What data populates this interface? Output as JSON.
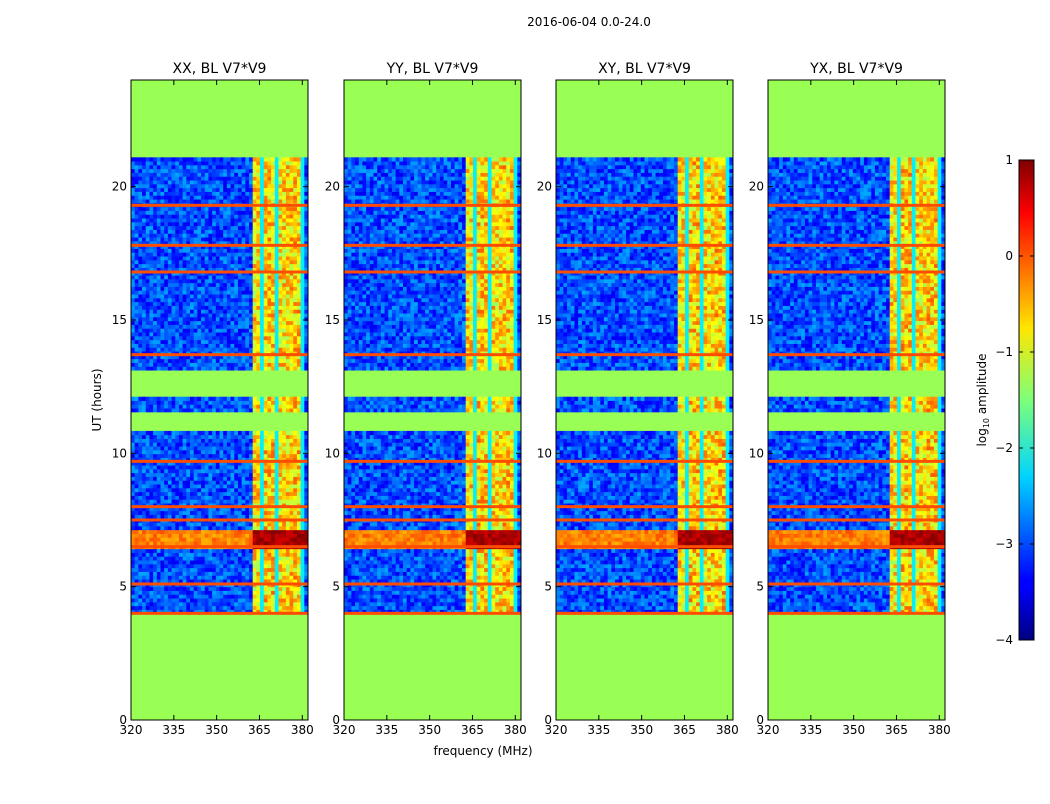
{
  "chart_data": {
    "type": "heatmap",
    "suptitle": "2016-06-04 0.0-24.0",
    "xlabel": "frequency (MHz)",
    "ylabel": "UT (hours)",
    "xlim": [
      320,
      382
    ],
    "ylim": [
      0,
      24
    ],
    "xticks": [
      320,
      335,
      350,
      365,
      380
    ],
    "yticks": [
      0,
      5,
      10,
      15,
      20
    ],
    "colormap": "jet",
    "colorbar": {
      "label_prefix": "log",
      "label_sub": "10",
      "label_suffix": " amplitude",
      "range": [
        -4,
        1
      ],
      "ticks": [
        1,
        0,
        -1,
        -2,
        -3,
        -4
      ]
    },
    "masked_value_color": "#99ff55",
    "data_window_hours": [
      4.0,
      21.1
    ],
    "masked_hour_ranges": [
      [
        0,
        4.0
      ],
      [
        10.8,
        11.5
      ],
      [
        12.0,
        13.0
      ],
      [
        21.1,
        24
      ]
    ],
    "active_band_mhz": [
      362,
      381
    ],
    "noise_floor_log10_amplitude": -3,
    "active_band_log10_amplitude": -1,
    "rfi_hours": [
      4.0,
      5.1,
      6.5,
      7.5,
      8.0,
      9.7,
      13.7,
      16.8,
      17.8,
      19.3
    ],
    "panels": [
      {
        "title": "XX, BL V7*V9",
        "flare_hours": [
          6.4,
          7.0
        ],
        "flare_peak": 1
      },
      {
        "title": "YY, BL V7*V9",
        "flare_hours": [
          6.4,
          7.0
        ],
        "flare_peak": 1
      },
      {
        "title": "XY, BL V7*V9",
        "flare_hours": [
          6.4,
          7.0
        ],
        "flare_peak": 1
      },
      {
        "title": "YX, BL V7*V9",
        "flare_hours": [
          6.4,
          7.0
        ],
        "flare_peak": 1
      }
    ]
  }
}
